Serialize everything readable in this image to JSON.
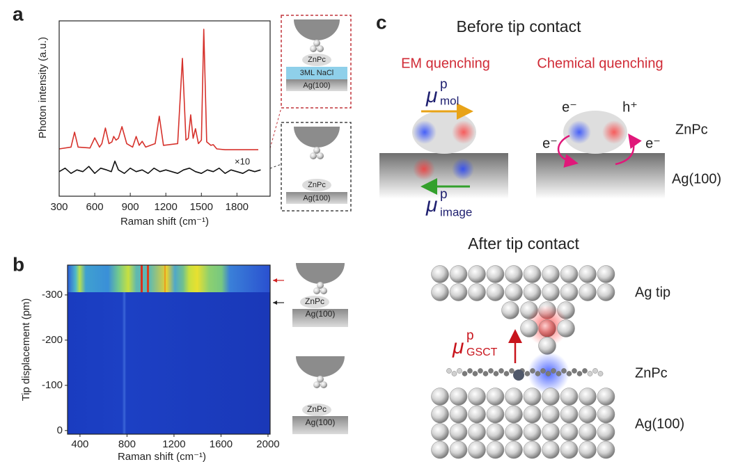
{
  "chart_data": [
    {
      "type": "line",
      "xlabel": "Raman shift (cm⁻¹)",
      "ylabel": "Photon intensity (a.u.)",
      "xlim": [
        300,
        2080
      ],
      "xticks": [
        300,
        600,
        900,
        1200,
        1500,
        1800
      ],
      "ylim": [
        0,
        100
      ],
      "annotation": "×10",
      "series": [
        {
          "color": "#d6312b",
          "x": [
            300,
            400,
            430,
            460,
            560,
            600,
            640,
            660,
            690,
            720,
            745,
            760,
            780,
            800,
            830,
            870,
            920,
            950,
            975,
            1000,
            1030,
            1110,
            1145,
            1180,
            1300,
            1340,
            1370,
            1390,
            1410,
            1430,
            1450,
            1475,
            1500,
            1520,
            1545,
            1580,
            1600,
            1630,
            1700,
            1850,
            1980
          ],
          "values": [
            27,
            28,
            36.5,
            28,
            27.5,
            33.3,
            28,
            30,
            38.9,
            30,
            31,
            34.1,
            32,
            33,
            39.7,
            30,
            28,
            34.1,
            29,
            31.3,
            28,
            30,
            45.6,
            29,
            30,
            78.6,
            32,
            33,
            46.4,
            33,
            38.5,
            30,
            32,
            95.2,
            31,
            29,
            29.4,
            27,
            26.5,
            26.5,
            26.5
          ]
        },
        {
          "color": "#111111",
          "x": [
            300,
            350,
            400,
            450,
            500,
            550,
            600,
            650,
            700,
            740,
            770,
            800,
            850,
            900,
            950,
            1000,
            1050,
            1100,
            1150,
            1200,
            1250,
            1300,
            1350,
            1400,
            1450,
            1500,
            1550,
            1600,
            1650,
            1700,
            1750,
            1800,
            1850,
            1900,
            1950,
            2000
          ],
          "values": [
            14,
            16,
            13,
            15,
            14,
            17,
            13,
            16,
            15,
            14,
            20,
            15,
            13,
            16,
            14,
            15,
            13,
            16,
            14,
            15,
            14,
            13,
            15,
            16,
            14,
            13,
            15,
            14,
            16,
            13,
            15,
            14,
            13,
            15,
            14,
            15
          ]
        }
      ]
    },
    {
      "type": "heatmap",
      "xlabel": "Raman shift (cm⁻¹)",
      "ylabel": "Tip displacement (pm)",
      "xlim": [
        294,
        2018
      ],
      "xticks": [
        400,
        800,
        1200,
        1600,
        2000
      ],
      "ylim": [
        8,
        -366
      ],
      "yticks": [
        0,
        -100,
        -200,
        -300
      ]
    }
  ],
  "panels": {
    "a": {
      "label": "a",
      "schematic_top": {
        "molecule": "ZnPc",
        "spacer": "3ML NaCl",
        "substrate": "Ag(100)"
      },
      "schematic_bottom": {
        "molecule": "ZnPc",
        "substrate": "Ag(100)"
      }
    },
    "b": {
      "label": "b",
      "schematic_top": {
        "molecule": "ZnPc",
        "substrate": "Ag(100)"
      },
      "schematic_bottom": {
        "molecule": "ZnPc",
        "substrate": "Ag(100)"
      }
    },
    "c": {
      "label": "c",
      "before": {
        "title": "Before tip contact",
        "em": "EM quenching",
        "chem": "Chemical quenching",
        "mu_mol": {
          "symbol": "μ",
          "sup": "p",
          "sub": "mol"
        },
        "mu_image": {
          "symbol": "μ",
          "sup": "p",
          "sub": "image"
        },
        "electron": "e⁻",
        "hole": "h⁺",
        "molecule": "ZnPc",
        "substrate": "Ag(100)"
      },
      "after": {
        "title": "After tip contact",
        "tip": "Ag tip",
        "mu_gsct": {
          "symbol": "μ",
          "sup": "p",
          "sub": "GSCT"
        },
        "molecule": "ZnPc",
        "substrate": "Ag(100)"
      }
    }
  }
}
